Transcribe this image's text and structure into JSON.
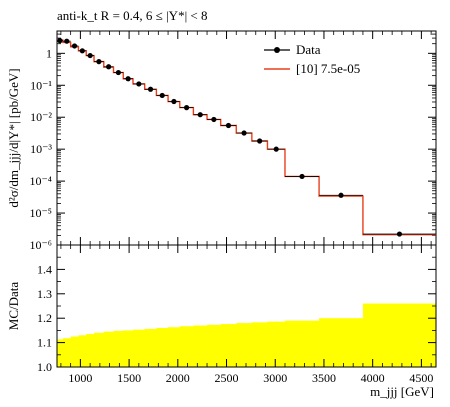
{
  "title": "anti-k_t R = 0.4, 6 ≤ |Y*| < 8",
  "chart_data": [
    {
      "type": "line",
      "panel": "main",
      "xlabel": "m_jjj [GeV]",
      "ylabel": "d²σ/dm_jjj/d|Y*| [pb/GeV]",
      "ylim": [
        1e-06,
        5
      ],
      "yscale": "log",
      "ytick_labels": [
        "1",
        "10⁻¹",
        "10⁻²",
        "10⁻³",
        "10⁻⁴",
        "10⁻⁵",
        "10⁻⁶"
      ],
      "legend": [
        {
          "label": "Data",
          "color": "#000000",
          "marker": "circle"
        },
        {
          "label": "[10] 7.5e-05",
          "color": "#e8401c"
        }
      ],
      "legend_position": "top-right",
      "bin_edges": [
        760,
        820,
        900,
        980,
        1060,
        1140,
        1240,
        1340,
        1440,
        1540,
        1660,
        1780,
        1900,
        2020,
        2160,
        2300,
        2440,
        2600,
        2760,
        2920,
        3100,
        3450,
        3900,
        4650
      ],
      "series": [
        {
          "name": "Data",
          "x": [
            790,
            860,
            940,
            1020,
            1100,
            1190,
            1290,
            1390,
            1490,
            1600,
            1720,
            1840,
            1960,
            2090,
            2230,
            2370,
            2520,
            2680,
            2840,
            3010,
            3275,
            3675,
            4275
          ],
          "y": [
            2.5,
            2.4,
            1.7,
            1.2,
            0.85,
            0.55,
            0.38,
            0.25,
            0.16,
            0.11,
            0.075,
            0.048,
            0.031,
            0.02,
            0.012,
            0.0085,
            0.0055,
            0.0032,
            0.0018,
            0.001,
            0.00014,
            3.6e-05,
            2.2e-06
          ],
          "color": "#000000"
        },
        {
          "name": "[10] 7.5e-05",
          "y": [
            2.6,
            2.2,
            1.6,
            1.2,
            0.85,
            0.55,
            0.37,
            0.25,
            0.16,
            0.11,
            0.075,
            0.048,
            0.031,
            0.02,
            0.012,
            0.0085,
            0.0055,
            0.0032,
            0.0018,
            0.001,
            0.00014,
            3.4e-05,
            2.1e-06
          ],
          "color": "#e8401c"
        }
      ]
    },
    {
      "type": "area",
      "panel": "ratio",
      "ylabel": "MC/Data",
      "xlabel": "m_jjj [GeV]",
      "ylim": [
        1.0,
        1.5
      ],
      "yticks": [
        1.0,
        1.1,
        1.2,
        1.3,
        1.4
      ],
      "xlim": [
        760,
        4650
      ],
      "xticks": [
        1000,
        1500,
        2000,
        2500,
        3000,
        3500,
        4000,
        4500
      ],
      "band_color": "#ffff00",
      "band_upper": [
        1.113,
        1.118,
        1.125,
        1.13,
        1.135,
        1.14,
        1.145,
        1.148,
        1.15,
        1.153,
        1.156,
        1.16,
        1.163,
        1.167,
        1.17,
        1.173,
        1.176,
        1.18,
        1.183,
        1.186,
        1.19,
        1.2,
        1.26
      ]
    }
  ]
}
